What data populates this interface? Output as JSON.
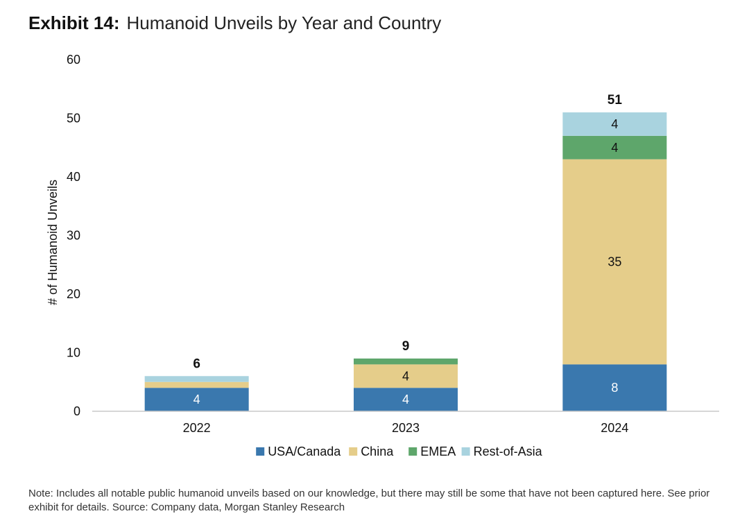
{
  "header": {
    "prefix": "Exhibit 14:",
    "title": "Humanoid Unveils by Year and Country"
  },
  "chart_data": {
    "type": "bar",
    "stacked": true,
    "title": "Humanoid Unveils by Year and Country",
    "xlabel": "",
    "ylabel": "# of Humanoid Unveils",
    "ylim": [
      0,
      60
    ],
    "yticks": [
      0,
      10,
      20,
      30,
      40,
      50,
      60
    ],
    "categories": [
      "2022",
      "2023",
      "2024"
    ],
    "series": [
      {
        "name": "USA/Canada",
        "color": "#3a78ae",
        "values": [
          4,
          4,
          8
        ],
        "labels": [
          "4",
          "4",
          "8"
        ]
      },
      {
        "name": "China",
        "color": "#e5cd8a",
        "values": [
          1,
          4,
          35
        ],
        "labels": [
          "",
          "4",
          "35"
        ]
      },
      {
        "name": "EMEA",
        "color": "#5ea66b",
        "values": [
          0,
          1,
          4
        ],
        "labels": [
          "",
          "",
          "4"
        ]
      },
      {
        "name": "Rest-of-Asia",
        "color": "#a9d3df",
        "values": [
          1,
          0,
          4
        ],
        "labels": [
          "",
          "",
          "4"
        ]
      }
    ],
    "totals": [
      6,
      9,
      51
    ],
    "legend_position": "bottom"
  },
  "footer": {
    "note": "Note: Includes all notable public humanoid unveils based on our knowledge, but there may still be some that have not been captured here. See prior exhibit for details. Source: Company data, Morgan Stanley Research"
  }
}
